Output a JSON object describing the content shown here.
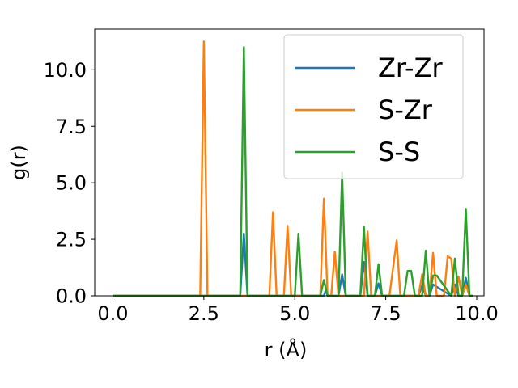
{
  "chart_data": {
    "type": "line",
    "xlabel": "r (Å)",
    "ylabel": "g(r)",
    "xlim": [
      -0.5,
      10.2
    ],
    "ylim": [
      0,
      11.8
    ],
    "xticks": [
      0.0,
      2.5,
      5.0,
      7.5,
      10.0
    ],
    "xtick_labels": [
      "0.0",
      "2.5",
      "5.0",
      "7.5",
      "10.0"
    ],
    "yticks": [
      0.0,
      2.5,
      5.0,
      7.5,
      10.0
    ],
    "ytick_labels": [
      "0.0",
      "2.5",
      "5.0",
      "7.5",
      "10.0"
    ],
    "grid": false,
    "legend_position": "top-right",
    "series": [
      {
        "name": "Zr-Zr",
        "color": "#1f77b4",
        "x": [
          0.0,
          3.5,
          3.6,
          3.7,
          5.8,
          5.85,
          5.9,
          6.2,
          6.3,
          6.4,
          6.8,
          6.9,
          7.0,
          7.2,
          7.3,
          7.4,
          8.4,
          8.5,
          8.6,
          8.7,
          8.8,
          9.3,
          9.4,
          9.5,
          9.6,
          9.7,
          9.8,
          9.9
        ],
        "y": [
          0.0,
          0.0,
          2.75,
          0.0,
          0.0,
          0.25,
          0.0,
          0.0,
          0.95,
          0.0,
          0.0,
          1.5,
          0.0,
          0.0,
          0.55,
          0.0,
          0.0,
          0.45,
          0.0,
          0.0,
          0.5,
          0.0,
          0.5,
          0.0,
          0.0,
          0.8,
          0.0,
          0.0
        ]
      },
      {
        "name": "S-Zr",
        "color": "#ff7f0e",
        "x": [
          0.0,
          2.4,
          2.5,
          2.6,
          4.3,
          4.4,
          4.5,
          4.7,
          4.8,
          4.9,
          5.7,
          5.8,
          5.9,
          6.0,
          6.1,
          6.2,
          6.9,
          7.0,
          7.1,
          7.6,
          7.8,
          7.9,
          8.4,
          8.5,
          8.6,
          8.7,
          8.8,
          8.9,
          9.1,
          9.2,
          9.3,
          9.4,
          9.5,
          9.6,
          9.7,
          9.8,
          9.9
        ],
        "y": [
          0.0,
          0.0,
          11.25,
          0.0,
          0.0,
          3.7,
          0.0,
          0.0,
          3.1,
          0.0,
          0.0,
          4.3,
          0.0,
          0.0,
          1.95,
          0.0,
          0.0,
          2.85,
          0.0,
          0.0,
          2.45,
          0.0,
          0.0,
          0.95,
          0.0,
          0.0,
          1.9,
          0.0,
          0.0,
          1.75,
          1.65,
          0.0,
          0.85,
          0.0,
          0.5,
          0.0,
          0.0
        ]
      },
      {
        "name": "S-S",
        "color": "#2ca02c",
        "x": [
          0.0,
          3.5,
          3.6,
          3.7,
          5.0,
          5.1,
          5.2,
          5.7,
          5.8,
          5.9,
          6.2,
          6.3,
          6.4,
          6.8,
          6.9,
          7.0,
          7.2,
          7.3,
          7.4,
          8.0,
          8.1,
          8.2,
          8.3,
          8.5,
          8.6,
          8.7,
          8.8,
          8.9,
          9.3,
          9.4,
          9.5,
          9.6,
          9.7,
          9.8,
          9.9
        ],
        "y": [
          0.0,
          0.0,
          11.0,
          0.0,
          0.0,
          2.75,
          0.0,
          0.0,
          0.7,
          0.0,
          0.0,
          5.45,
          0.0,
          0.0,
          3.05,
          0.0,
          0.0,
          1.4,
          0.0,
          0.0,
          1.1,
          1.1,
          0.0,
          0.0,
          2.0,
          0.0,
          0.9,
          0.9,
          0.0,
          1.65,
          0.0,
          0.0,
          3.85,
          0.0,
          0.0
        ]
      }
    ]
  }
}
